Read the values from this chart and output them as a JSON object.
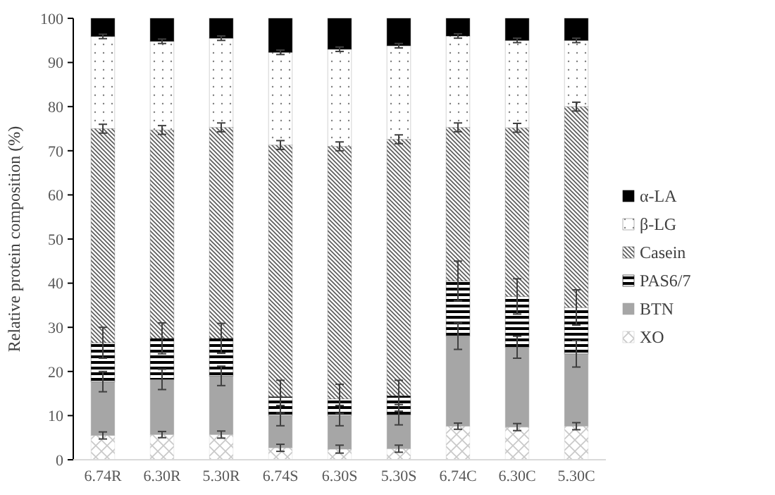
{
  "chart_data": {
    "type": "bar",
    "stacked": true,
    "ylabel": "Relative protein composition (%)",
    "categories": [
      "6.74R",
      "6.30R",
      "5.30R",
      "6.74S",
      "6.30S",
      "5.30S",
      "6.74C",
      "6.30C",
      "5.30C"
    ],
    "ylim": [
      0,
      100
    ],
    "yticks": [
      0,
      10,
      20,
      30,
      40,
      50,
      60,
      70,
      80,
      90,
      100
    ],
    "grid": false,
    "legend": "right",
    "series": [
      {
        "name": "XO",
        "color": "#c8c8c8",
        "values": [
          5.5,
          5.7,
          5.7,
          2.7,
          2.4,
          2.5,
          7.6,
          7.4,
          7.6
        ],
        "errors": [
          0.8,
          0.7,
          0.8,
          0.8,
          0.9,
          0.8,
          0.7,
          0.8,
          0.8
        ]
      },
      {
        "name": "BTN",
        "color": "#a6a6a6",
        "values": [
          12.2,
          12.5,
          13.3,
          7.3,
          7.6,
          7.7,
          20.4,
          18.1,
          16.4
        ],
        "errors": [
          2.3,
          2.3,
          2.2,
          2.3,
          2.3,
          2.3,
          3,
          2.5,
          3
        ]
      },
      {
        "name": "PAS6/7",
        "color": "#000000",
        "values": [
          8.8,
          9.3,
          8.5,
          4.3,
          3.8,
          4.3,
          12.5,
          11.5,
          10.5
        ],
        "errors": [
          3.5,
          3.5,
          3.4,
          3.7,
          3.3,
          3.5,
          4.5,
          4,
          4
        ]
      },
      {
        "name": "Casein",
        "color": "#595959",
        "values": [
          48.5,
          47.2,
          47.8,
          57,
          57.2,
          58.1,
          34.8,
          38.2,
          45.5
        ],
        "errors": [
          1,
          1,
          1,
          1,
          1,
          1,
          1,
          1,
          1
        ]
      },
      {
        "name": "β-LG",
        "color": "#808080",
        "values": [
          20.9,
          20.1,
          20.2,
          21,
          22,
          21.2,
          20.7,
          19.8,
          15
        ],
        "errors": [
          0.5,
          0.5,
          0.5,
          0.5,
          0.5,
          0.5,
          0.5,
          0.5,
          0.5
        ]
      },
      {
        "name": "α-LA",
        "color": "#000000",
        "values": [
          4.1,
          5.2,
          4.5,
          7.7,
          7,
          6.2,
          4,
          5,
          5
        ]
      }
    ]
  }
}
